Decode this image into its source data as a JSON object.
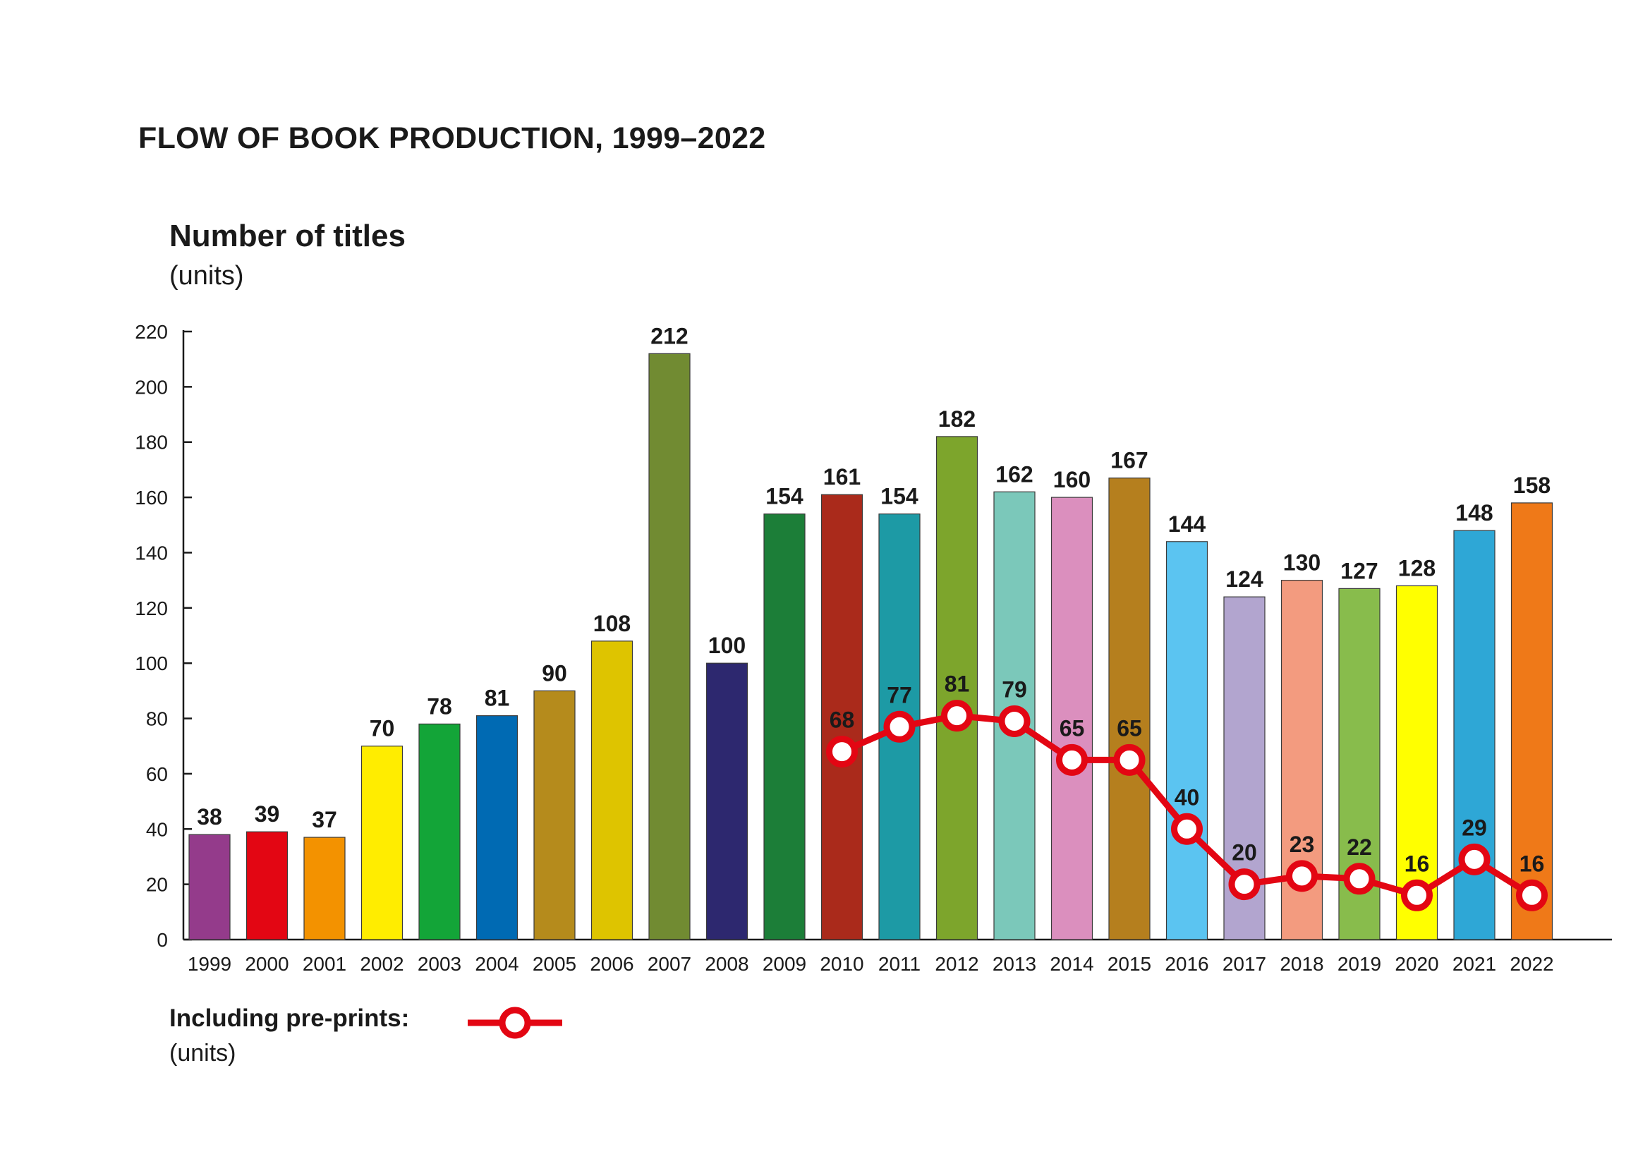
{
  "title": "FLOW OF BOOK PRODUCTION, 1999–2022",
  "ylabel": "Number of titles",
  "yunit": "(units)",
  "legend": {
    "label": "Including pre-prints:",
    "unit": "(units)",
    "color": "#e30613"
  },
  "chart_data": {
    "type": "bar",
    "title": "FLOW OF BOOK PRODUCTION, 1999–2022",
    "xlabel": "",
    "ylabel": "Number of titles",
    "ylim": [
      0,
      220
    ],
    "yticks": [
      0,
      20,
      40,
      60,
      80,
      100,
      120,
      140,
      160,
      180,
      200,
      220
    ],
    "grid": false,
    "legend_position": "bottom-left",
    "categories": [
      "1999",
      "2000",
      "2001",
      "2002",
      "2003",
      "2004",
      "2005",
      "2006",
      "2007",
      "2008",
      "2009",
      "2010",
      "2011",
      "2012",
      "2013",
      "2014",
      "2015",
      "2016",
      "2017",
      "2018",
      "2019",
      "2020",
      "2021",
      "2022"
    ],
    "values": [
      38,
      39,
      37,
      70,
      78,
      81,
      90,
      108,
      212,
      100,
      154,
      161,
      154,
      182,
      162,
      160,
      167,
      144,
      124,
      130,
      127,
      128,
      148,
      158
    ],
    "bar_colors": [
      "#943b8b",
      "#e30613",
      "#f39200",
      "#ffed00",
      "#13a538",
      "#006ab3",
      "#b58b1c",
      "#dec400",
      "#718b32",
      "#2d286f",
      "#1c7e38",
      "#aa2a1b",
      "#1d9aa5",
      "#7da52c",
      "#7bc8ba",
      "#db8fbe",
      "#b57f1e",
      "#5bc4f1",
      "#b2a5cf",
      "#f39b7f",
      "#88bc4c",
      "#ffff00",
      "#2ea7d6",
      "#ef7918"
    ],
    "series": [
      {
        "name": "Including pre-prints:",
        "type": "line",
        "color": "#e30613",
        "x": [
          "2010",
          "2011",
          "2012",
          "2013",
          "2014",
          "2015",
          "2016",
          "2017",
          "2018",
          "2019",
          "2020",
          "2021",
          "2022"
        ],
        "values": [
          68,
          77,
          81,
          79,
          65,
          65,
          40,
          20,
          23,
          22,
          16,
          29,
          16
        ]
      }
    ]
  }
}
